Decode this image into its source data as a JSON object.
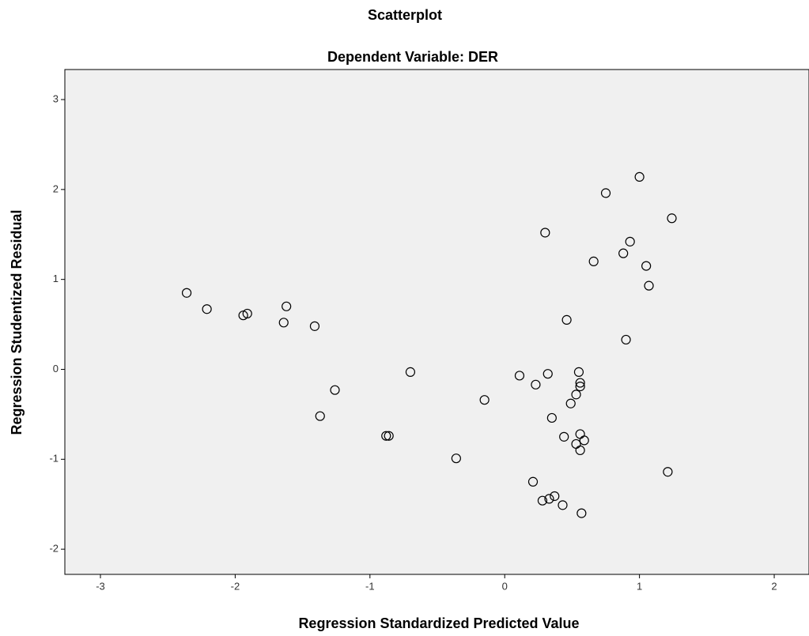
{
  "chart_data": {
    "type": "scatter",
    "title": "Scatterplot",
    "subtitle": "Dependent Variable: DER",
    "x_label": "Regression Standardized Predicted Value",
    "y_label": "Regression Studentized Residual",
    "x": [
      -2.36,
      -2.21,
      -1.94,
      -1.91,
      -1.62,
      -1.64,
      -1.41,
      -1.26,
      -1.37,
      -0.88,
      -0.86,
      -0.7,
      -0.36,
      -0.15,
      0.11,
      0.23,
      0.32,
      0.3,
      0.35,
      0.21,
      0.28,
      0.33,
      0.37,
      0.43,
      0.44,
      0.46,
      0.49,
      0.53,
      0.55,
      0.56,
      0.56,
      0.56,
      0.59,
      0.53,
      0.56,
      0.57,
      0.66,
      0.75,
      0.88,
      0.93,
      0.9,
      1.0,
      1.05,
      1.07,
      1.24,
      1.21
    ],
    "y": [
      0.85,
      0.67,
      0.6,
      0.62,
      0.7,
      0.52,
      0.48,
      -0.23,
      -0.52,
      -0.74,
      -0.74,
      -0.03,
      -0.99,
      -0.34,
      -0.07,
      -0.17,
      -0.05,
      1.52,
      -0.54,
      -1.25,
      -1.46,
      -1.44,
      -1.41,
      -1.51,
      -0.75,
      0.55,
      -0.38,
      -0.28,
      -0.03,
      -0.15,
      -0.19,
      -0.72,
      -0.79,
      -0.83,
      -0.9,
      -1.6,
      1.2,
      1.96,
      1.29,
      1.42,
      0.33,
      2.14,
      1.15,
      0.93,
      1.68,
      -1.14
    ],
    "color": "#000000",
    "background": "#f0f0f0",
    "xlim": [
      -3.264,
      2.258
    ],
    "xticks": [
      -3,
      -2,
      -1,
      0,
      1,
      2
    ],
    "ylim": [
      -2.28,
      3.334
    ],
    "yticks": [
      -2,
      -1,
      0,
      1,
      2,
      3
    ]
  }
}
